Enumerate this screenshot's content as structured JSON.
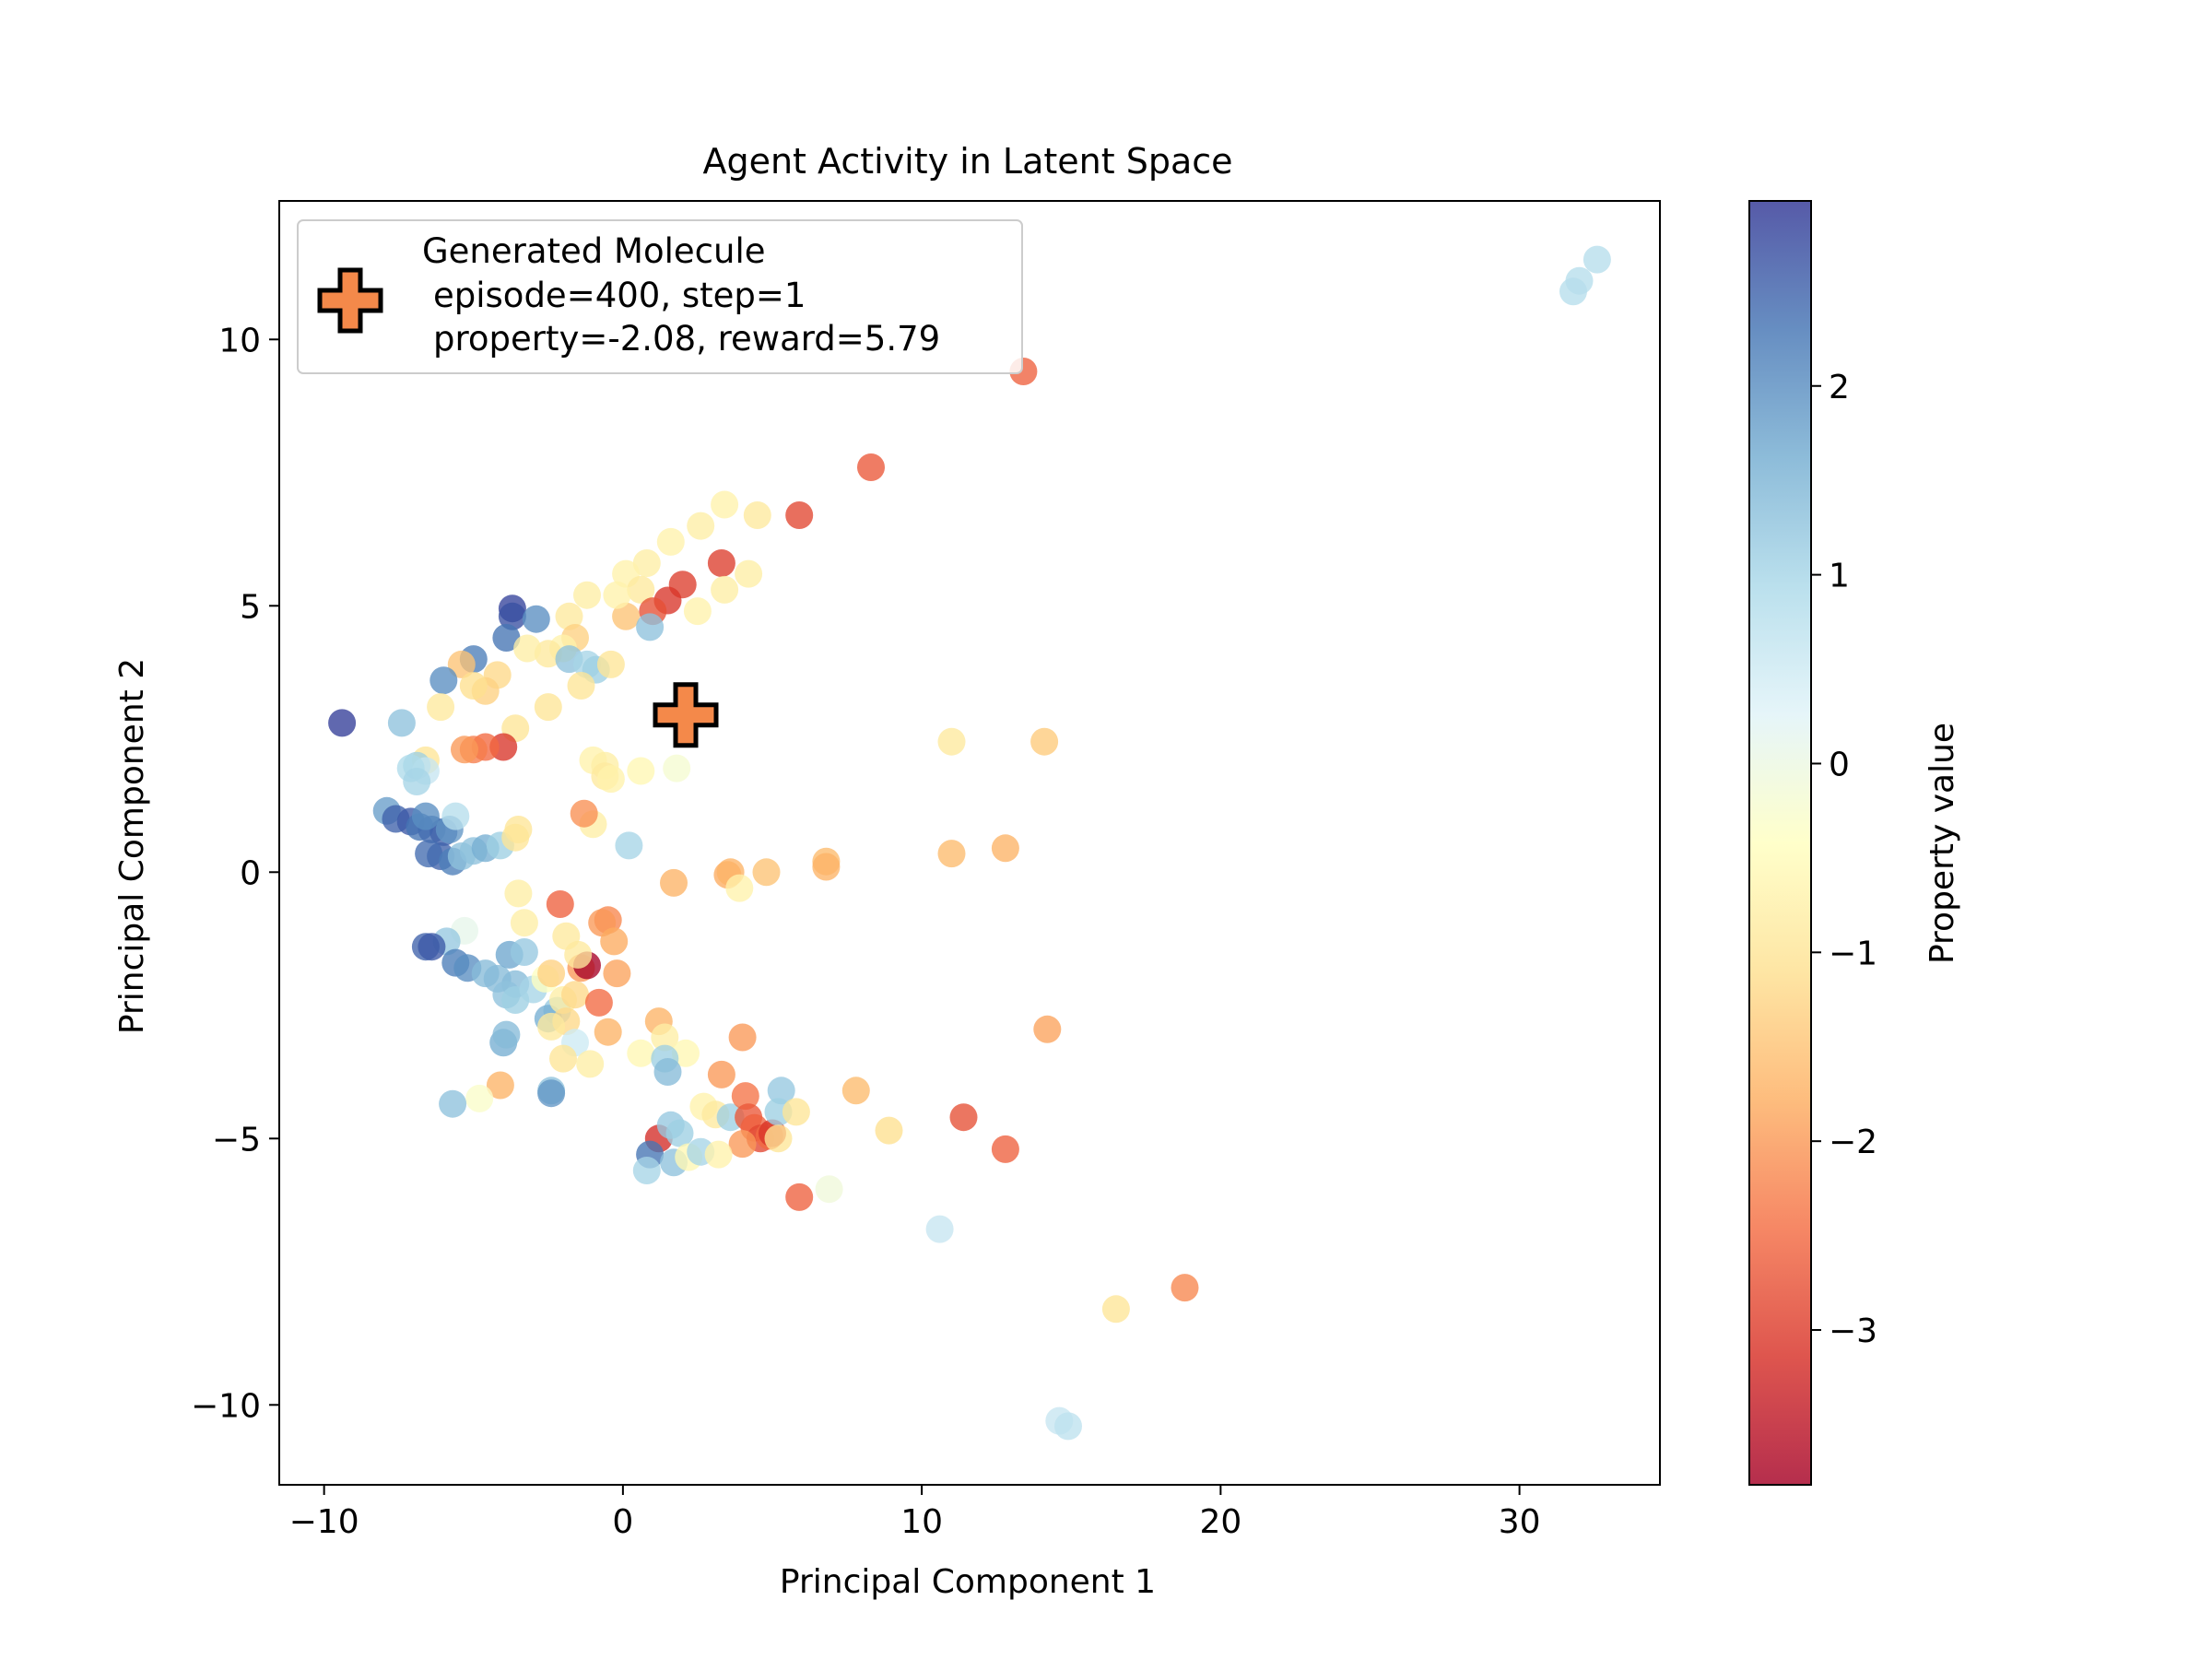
{
  "chart_data": {
    "type": "scatter",
    "title": "Agent Activity in Latent Space",
    "xlabel": "Principal Component 1",
    "ylabel": "Principal Component 2",
    "xlim": [
      -11.5,
      34.7
    ],
    "ylim": [
      -11.5,
      12.6
    ],
    "xticks": [
      -10,
      0,
      10,
      20,
      30
    ],
    "yticks": [
      -10,
      -5,
      0,
      5,
      10
    ],
    "grid": false,
    "legend": {
      "placement": "top-left",
      "title": "Generated Molecule",
      "lines": [
        "episode=400, step=1",
        "property=-2.08, reward=5.79"
      ]
    },
    "colorbar": {
      "label": "Property value",
      "range": [
        -3.82,
        2.98
      ],
      "ticks": [
        -3,
        -2,
        -1,
        0,
        1,
        2
      ],
      "colormap": "RdYlBu"
    },
    "highlight": {
      "x": 2.1,
      "y": 2.95,
      "property": -2.08,
      "marker": "plus",
      "color": "#f4894a"
    },
    "series": [
      {
        "points": [
          [
            32.6,
            11.5,
            0.8
          ],
          [
            32.0,
            11.1,
            0.8
          ],
          [
            31.8,
            10.9,
            0.8
          ],
          [
            13.4,
            9.4,
            -2.6
          ],
          [
            8.3,
            7.6,
            -2.7
          ],
          [
            5.9,
            6.7,
            -2.9
          ],
          [
            3.4,
            6.9,
            -0.7
          ],
          [
            4.5,
            6.7,
            -0.9
          ],
          [
            2.6,
            6.5,
            -0.8
          ],
          [
            1.6,
            6.2,
            -0.7
          ],
          [
            3.3,
            5.8,
            -3.0
          ],
          [
            4.2,
            5.6,
            -0.8
          ],
          [
            0.8,
            5.8,
            -0.8
          ],
          [
            0.1,
            5.6,
            -0.7
          ],
          [
            0.6,
            5.3,
            -0.9
          ],
          [
            2.0,
            5.4,
            -3.0
          ],
          [
            1.5,
            5.1,
            -3.1
          ],
          [
            1.0,
            4.9,
            -2.8
          ],
          [
            2.5,
            4.9,
            -0.7
          ],
          [
            0.1,
            4.8,
            -1.5
          ],
          [
            -1.2,
            5.2,
            -0.8
          ],
          [
            -0.2,
            5.2,
            -0.7
          ],
          [
            3.4,
            5.3,
            -0.8
          ],
          [
            0.9,
            4.6,
            1.3
          ],
          [
            -3.7,
            4.95,
            2.85
          ],
          [
            -3.7,
            4.8,
            2.7
          ],
          [
            -2.9,
            4.75,
            2.0
          ],
          [
            -1.8,
            4.8,
            -0.9
          ],
          [
            -1.6,
            4.4,
            -1.3
          ],
          [
            -3.9,
            4.4,
            2.3
          ],
          [
            -2.0,
            4.2,
            -0.7
          ],
          [
            -2.5,
            4.1,
            -0.9
          ],
          [
            -3.2,
            4.2,
            -0.8
          ],
          [
            -1.8,
            4.0,
            1.3
          ],
          [
            -1.2,
            3.9,
            1.0
          ],
          [
            -0.9,
            3.8,
            1.1
          ],
          [
            -0.4,
            3.9,
            -1.0
          ],
          [
            -5.0,
            4.0,
            2.2
          ],
          [
            -5.4,
            3.9,
            -1.5
          ],
          [
            -4.2,
            3.7,
            -1.2
          ],
          [
            -6.0,
            3.6,
            2.0
          ],
          [
            -4.6,
            3.4,
            -1.3
          ],
          [
            -5.0,
            3.5,
            -1.1
          ],
          [
            -2.5,
            3.1,
            -1.0
          ],
          [
            -1.4,
            3.5,
            -1.0
          ],
          [
            -6.1,
            3.1,
            -0.9
          ],
          [
            -9.4,
            2.8,
            2.9
          ],
          [
            -7.4,
            2.8,
            1.3
          ],
          [
            -3.6,
            2.7,
            -1.0
          ],
          [
            -6.6,
            2.1,
            -1.0
          ],
          [
            -6.9,
            2.0,
            1.1
          ],
          [
            -6.6,
            1.9,
            0.6
          ],
          [
            -7.1,
            1.95,
            0.9
          ],
          [
            -6.9,
            1.7,
            1.0
          ],
          [
            -4.0,
            2.35,
            -3.1
          ],
          [
            -4.6,
            2.35,
            -2.5
          ],
          [
            -5.0,
            2.3,
            -2.3
          ],
          [
            -5.3,
            2.3,
            -2.0
          ],
          [
            -1.0,
            2.1,
            -0.7
          ],
          [
            -0.6,
            2.0,
            -0.8
          ],
          [
            -0.6,
            1.8,
            -0.9
          ],
          [
            -0.4,
            1.75,
            -0.7
          ],
          [
            0.6,
            1.9,
            -0.6
          ],
          [
            1.8,
            1.95,
            -0.2
          ],
          [
            11.0,
            2.45,
            -0.9
          ],
          [
            14.1,
            2.45,
            -1.4
          ],
          [
            -7.9,
            1.15,
            1.8
          ],
          [
            -7.6,
            1.0,
            2.5
          ],
          [
            -7.1,
            0.95,
            2.6
          ],
          [
            -6.8,
            0.85,
            2.3
          ],
          [
            -6.4,
            0.8,
            2.4
          ],
          [
            -6.0,
            0.75,
            2.5
          ],
          [
            -6.6,
            1.05,
            2.0
          ],
          [
            -5.8,
            0.8,
            1.9
          ],
          [
            -5.6,
            1.05,
            0.8
          ],
          [
            -6.1,
            0.3,
            2.5
          ],
          [
            -6.5,
            0.35,
            2.4
          ],
          [
            -5.7,
            0.2,
            2.2
          ],
          [
            -5.4,
            0.3,
            1.3
          ],
          [
            -5.0,
            0.4,
            1.3
          ],
          [
            -4.6,
            0.45,
            1.6
          ],
          [
            -4.1,
            0.5,
            1.1
          ],
          [
            -3.6,
            0.65,
            -1.0
          ],
          [
            -3.5,
            0.8,
            -1.0
          ],
          [
            -1.0,
            0.9,
            -0.8
          ],
          [
            -1.3,
            1.1,
            -2.1
          ],
          [
            0.2,
            0.5,
            1.0
          ],
          [
            1.7,
            -0.2,
            -1.7
          ],
          [
            3.5,
            -0.05,
            -1.8
          ],
          [
            3.6,
            0.0,
            -1.7
          ],
          [
            4.8,
            0.0,
            -1.5
          ],
          [
            6.8,
            0.2,
            -1.6
          ],
          [
            6.8,
            0.1,
            -1.7
          ],
          [
            11.0,
            0.35,
            -1.6
          ],
          [
            12.8,
            0.45,
            -1.7
          ],
          [
            3.9,
            -0.3,
            -0.7
          ],
          [
            -3.5,
            -0.4,
            -0.8
          ],
          [
            -2.1,
            -0.6,
            -2.6
          ],
          [
            -0.5,
            -0.9,
            -2.2
          ],
          [
            -0.7,
            -0.95,
            -2.0
          ],
          [
            -0.3,
            -1.3,
            -1.8
          ],
          [
            -1.9,
            -1.2,
            -0.9
          ],
          [
            -3.3,
            -0.95,
            -0.8
          ],
          [
            -5.3,
            -1.1,
            0.1
          ],
          [
            -5.9,
            -1.3,
            1.2
          ],
          [
            -6.6,
            -1.4,
            2.5
          ],
          [
            -6.4,
            -1.4,
            2.6
          ],
          [
            -5.6,
            -1.7,
            2.2
          ],
          [
            -5.2,
            -1.8,
            2.0
          ],
          [
            -4.6,
            -1.9,
            1.4
          ],
          [
            -4.2,
            -2.0,
            1.4
          ],
          [
            -3.8,
            -1.55,
            1.7
          ],
          [
            -3.3,
            -1.5,
            1.2
          ],
          [
            -3.6,
            -2.1,
            1.4
          ],
          [
            -3.9,
            -2.3,
            1.3
          ],
          [
            -3.6,
            -2.4,
            1.1
          ],
          [
            -3.0,
            -2.2,
            1.0
          ],
          [
            -2.6,
            -2.0,
            -0.4
          ],
          [
            -2.2,
            -2.6,
            1.2
          ],
          [
            -2.5,
            -2.75,
            1.6
          ],
          [
            -2.0,
            -2.4,
            -0.8
          ],
          [
            -1.6,
            -2.3,
            -1.2
          ],
          [
            -1.4,
            -1.8,
            -2.0
          ],
          [
            -1.2,
            -1.75,
            -3.8
          ],
          [
            -1.5,
            -1.55,
            -0.9
          ],
          [
            -0.8,
            -2.45,
            -2.5
          ],
          [
            -1.9,
            -2.8,
            -1.2
          ],
          [
            -2.4,
            -2.9,
            -0.9
          ],
          [
            -1.6,
            -3.2,
            0.5
          ],
          [
            -1.1,
            -3.6,
            -0.8
          ],
          [
            -0.5,
            -3.0,
            -1.7
          ],
          [
            -0.2,
            -1.9,
            -1.9
          ],
          [
            0.6,
            -3.4,
            -0.6
          ],
          [
            1.2,
            -2.8,
            -1.7
          ],
          [
            1.4,
            -3.1,
            -0.8
          ],
          [
            2.1,
            -3.4,
            -0.6
          ],
          [
            1.4,
            -3.5,
            1.1
          ],
          [
            1.5,
            -3.75,
            1.4
          ],
          [
            3.3,
            -3.8,
            -2.0
          ],
          [
            4.0,
            -3.1,
            -2.0
          ],
          [
            -4.0,
            -3.2,
            1.6
          ],
          [
            -3.9,
            -3.05,
            1.4
          ],
          [
            -2.4,
            -4.1,
            1.3
          ],
          [
            -2.4,
            -4.15,
            1.9
          ],
          [
            -4.1,
            -4.0,
            -1.7
          ],
          [
            -4.8,
            -4.25,
            -0.3
          ],
          [
            -5.7,
            -4.35,
            1.3
          ],
          [
            2.7,
            -4.4,
            -0.7
          ],
          [
            3.1,
            -4.55,
            -0.9
          ],
          [
            3.6,
            -4.6,
            1.1
          ],
          [
            4.1,
            -4.2,
            -2.4
          ],
          [
            4.2,
            -4.6,
            -2.7
          ],
          [
            4.4,
            -4.8,
            -2.6
          ],
          [
            4.6,
            -5.0,
            -2.9
          ],
          [
            4.9,
            -4.95,
            -2.5
          ],
          [
            4.0,
            -5.1,
            -2.0
          ],
          [
            5.0,
            -4.9,
            -3.1
          ],
          [
            5.3,
            -4.1,
            1.2
          ],
          [
            5.2,
            -4.5,
            1.1
          ],
          [
            5.8,
            -4.5,
            -1.0
          ],
          [
            5.2,
            -5.0,
            -1.0
          ],
          [
            1.2,
            -5.0,
            -3.2
          ],
          [
            0.9,
            -5.3,
            2.3
          ],
          [
            0.8,
            -5.6,
            1.0
          ],
          [
            1.6,
            -4.75,
            1.2
          ],
          [
            1.9,
            -4.9,
            1.1
          ],
          [
            1.7,
            -5.45,
            1.3
          ],
          [
            2.2,
            -5.35,
            -0.6
          ],
          [
            2.6,
            -5.25,
            1.0
          ],
          [
            3.2,
            -5.3,
            -0.7
          ],
          [
            5.9,
            -6.1,
            -2.6
          ],
          [
            6.9,
            -5.95,
            -0.1
          ],
          [
            7.8,
            -4.1,
            -1.6
          ],
          [
            8.9,
            -4.85,
            -1.1
          ],
          [
            11.4,
            -4.6,
            -2.8
          ],
          [
            12.8,
            -5.2,
            -2.6
          ],
          [
            14.2,
            -2.95,
            -1.9
          ],
          [
            10.6,
            -6.7,
            0.6
          ],
          [
            16.5,
            -8.2,
            -1.0
          ],
          [
            18.8,
            -7.8,
            -2.2
          ],
          [
            14.6,
            -10.3,
            0.6
          ],
          [
            14.9,
            -10.4,
            0.7
          ],
          [
            -2.4,
            -1.9,
            -1.3
          ],
          [
            -2.0,
            -3.5,
            -1.0
          ]
        ]
      }
    ]
  }
}
